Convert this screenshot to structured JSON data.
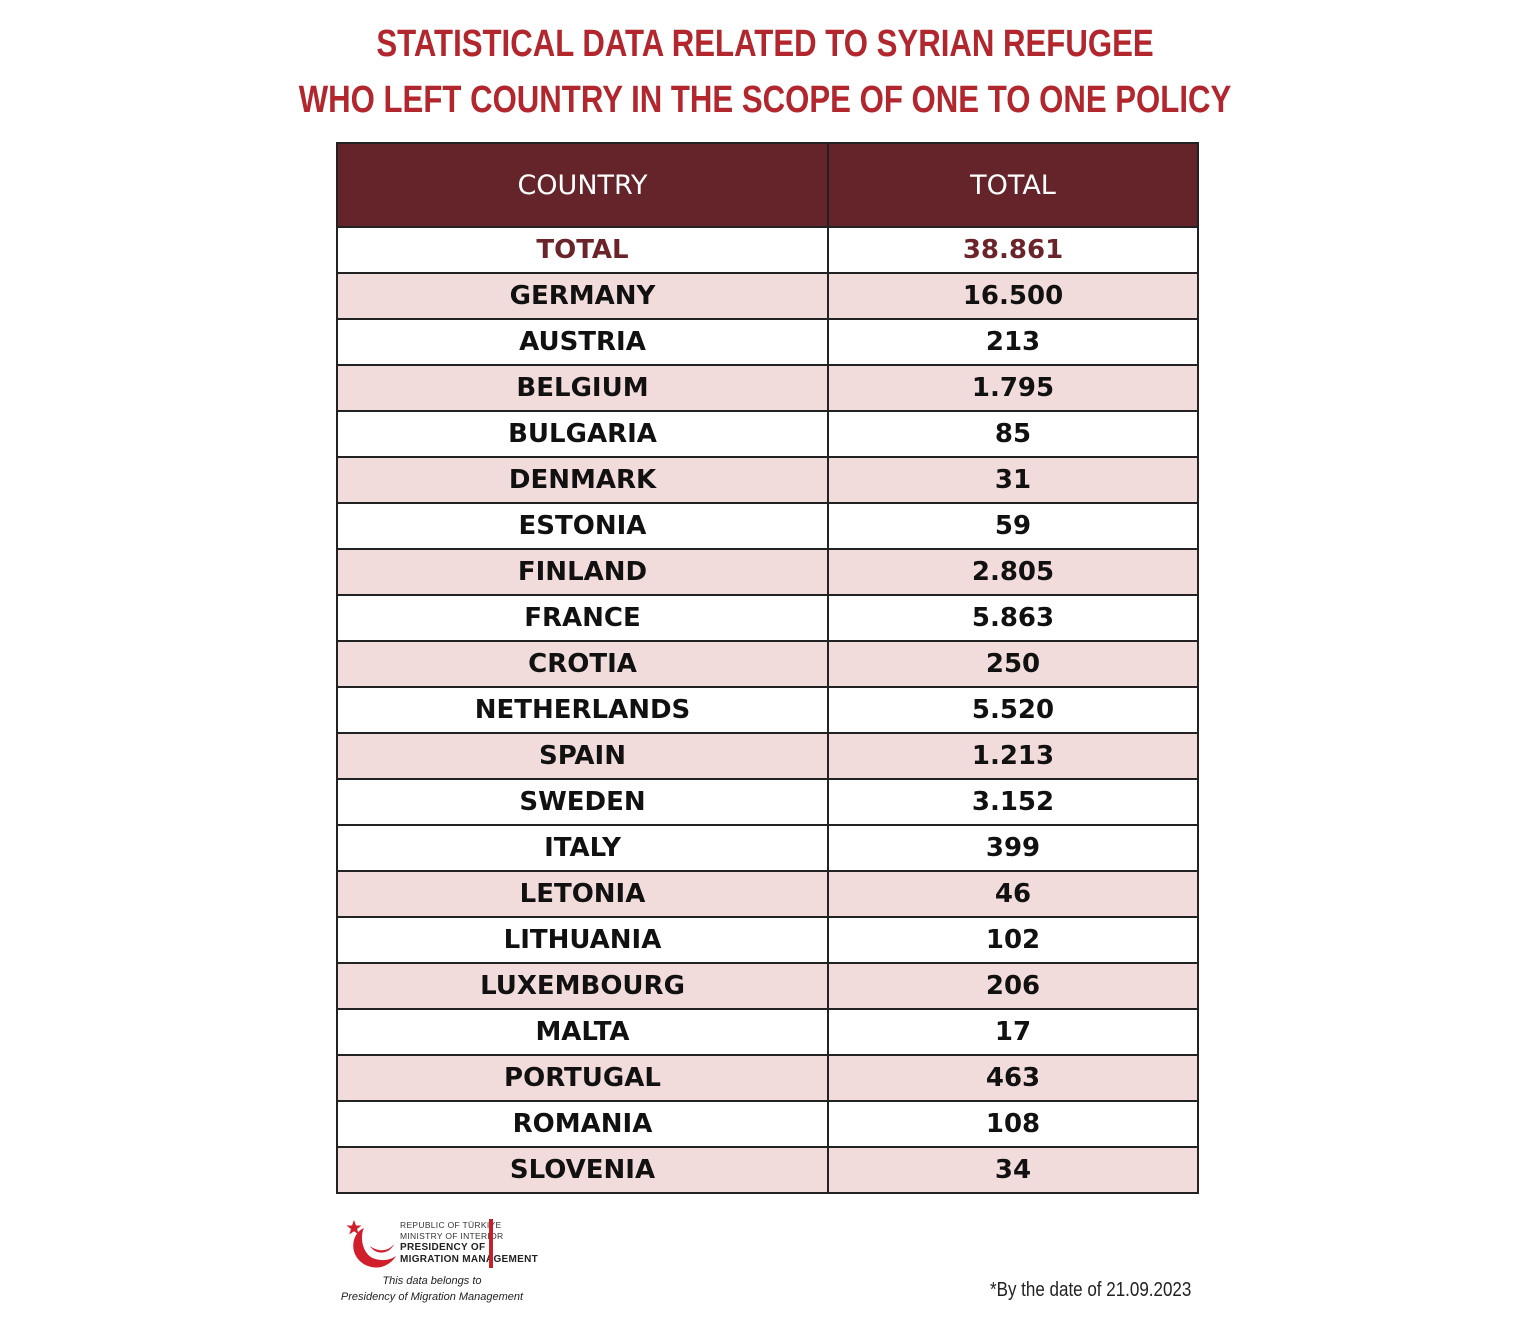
{
  "title": {
    "line1": "STATISTICAL DATA RELATED TO SYRIAN REFUGEE",
    "line2": "WHO LEFT COUNTRY IN THE SCOPE OF ONE TO ONE POLICY"
  },
  "chart_data": {
    "type": "table",
    "columns": [
      "COUNTRY",
      "TOTAL"
    ],
    "rows": [
      {
        "country": "TOTAL",
        "total": "38.861"
      },
      {
        "country": "GERMANY",
        "total": "16.500"
      },
      {
        "country": "AUSTRIA",
        "total": "213"
      },
      {
        "country": "BELGIUM",
        "total": "1.795"
      },
      {
        "country": "BULGARIA",
        "total": "85"
      },
      {
        "country": "DENMARK",
        "total": "31"
      },
      {
        "country": "ESTONIA",
        "total": "59"
      },
      {
        "country": "FINLAND",
        "total": "2.805"
      },
      {
        "country": "FRANCE",
        "total": "5.863"
      },
      {
        "country": "CROTIA",
        "total": "250"
      },
      {
        "country": "NETHERLANDS",
        "total": "5.520"
      },
      {
        "country": "SPAIN",
        "total": "1.213"
      },
      {
        "country": "SWEDEN",
        "total": "3.152"
      },
      {
        "country": "ITALY",
        "total": "399"
      },
      {
        "country": "LETONIA",
        "total": "46"
      },
      {
        "country": "LITHUANIA",
        "total": "102"
      },
      {
        "country": "LUXEMBOURG",
        "total": "206"
      },
      {
        "country": "MALTA",
        "total": "17"
      },
      {
        "country": "PORTUGAL",
        "total": "463"
      },
      {
        "country": "ROMANIA",
        "total": "108"
      },
      {
        "country": "SLOVENIA",
        "total": "34"
      }
    ]
  },
  "logo": {
    "line1": "REPUBLIC OF TÜRKIYE",
    "line2": "MINISTRY OF INTERIOR",
    "line3": "PRESIDENCY OF",
    "line4": "MIGRATION MANAGEMENT",
    "icon": "crescent-star-icon"
  },
  "footer": {
    "belongs_line1": "This data belongs to",
    "belongs_line2": "Presidency of Migration Management",
    "date_note": "*By the date of 21.09.2023"
  },
  "colors": {
    "title": "#b2262e",
    "header_bg": "#64242a",
    "shaded_row": "#f2dcdb",
    "total_text": "#6b2429"
  }
}
